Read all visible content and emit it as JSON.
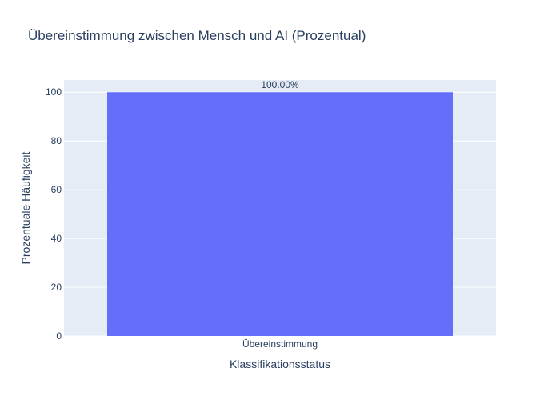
{
  "chart_data": {
    "type": "bar",
    "title": "Übereinstimmung zwischen Mensch und AI (Prozentual)",
    "xlabel": "Klassifikationsstatus",
    "ylabel": "Prozentuale Häufigkeit",
    "categories": [
      "Übereinstimmung"
    ],
    "values": [
      100
    ],
    "data_labels": [
      "100.00%"
    ],
    "ylim": [
      0,
      105
    ],
    "yticks": [
      0,
      20,
      40,
      60,
      80,
      100
    ],
    "grid": true,
    "legend": "none",
    "colors": {
      "bar": "#636efa",
      "plot_bg": "#e5ecf6",
      "grid": "#ffffff",
      "text": "#2a3f5f"
    }
  }
}
